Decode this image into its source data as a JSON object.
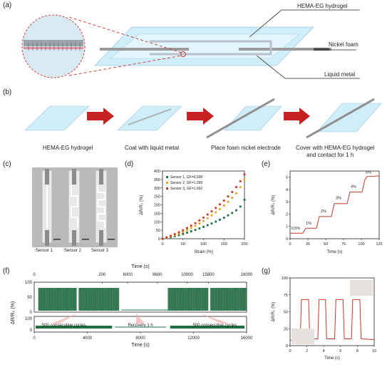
{
  "panels": {
    "a": "(a)",
    "b": "(b)",
    "c": "(c)",
    "d": "(d)",
    "e": "(e)",
    "f": "(f)",
    "g": "(g)"
  },
  "a": {
    "hydrogel": "HEMA-EG hydrogel",
    "nickel": "Nickel foam",
    "metal": "Liquid metal"
  },
  "b": {
    "steps": [
      "HEMA-EG hydrogel",
      "Coat with liquid metal",
      "Place foam nickel electrode",
      "Cover with HEMA-EG hydrogel",
      "and contact for 1 h"
    ]
  },
  "c": {
    "sensors": [
      "Sensor 1",
      "Sensor 2",
      "Sensor 3"
    ]
  },
  "colors": {
    "green": "#1f6e43",
    "orange": "#e6a51d",
    "red": "#c23a2e",
    "dark": "#2f4b36"
  },
  "chart_data": [
    {
      "type": "scatter",
      "xlabel": "Strain (%)",
      "ylabel": "ΔR/R₀ (%)",
      "xlim": [
        0,
        200
      ],
      "ylim": [
        0,
        400
      ],
      "xticks": [
        "0",
        "50",
        "100",
        "150",
        "200"
      ],
      "yticks": [
        "0",
        "50",
        "100",
        "150",
        "200",
        "250",
        "300",
        "350",
        "400"
      ],
      "legend": [
        "Sensor 1, GF=0.938",
        "Sensor 2, GF=1.399",
        "Sensor 3, GF=1.692"
      ],
      "x": [
        0,
        10,
        20,
        30,
        40,
        50,
        60,
        70,
        80,
        90,
        100,
        110,
        120,
        130,
        140,
        150,
        160,
        170,
        180,
        190,
        200
      ],
      "series": [
        {
          "name": "Sensor 1, GF=0.938",
          "values": [
            0,
            4,
            9,
            15,
            21,
            28,
            36,
            44,
            52,
            61,
            70,
            80,
            90,
            101,
            112,
            124,
            138,
            152,
            168,
            190,
            230
          ]
        },
        {
          "name": "Sensor 2, GF=1.399",
          "values": [
            0,
            6,
            13,
            21,
            30,
            40,
            51,
            63,
            76,
            90,
            105,
            121,
            138,
            156,
            175,
            196,
            218,
            242,
            268,
            305,
            350
          ]
        },
        {
          "name": "Sensor 3, GF=1.692",
          "values": [
            0,
            8,
            17,
            27,
            38,
            50,
            63,
            77,
            92,
            108,
            125,
            143,
            162,
            182,
            203,
            225,
            250,
            276,
            305,
            340,
            380
          ]
        }
      ]
    },
    {
      "type": "line",
      "xlabel": "Time (s)",
      "ylabel": "ΔR/R₀ (%)",
      "xlim": [
        0,
        125
      ],
      "ylim": [
        0,
        5.5
      ],
      "xticks": [
        "0",
        "25",
        "50",
        "75",
        "100",
        "125"
      ],
      "yticks": [
        "0",
        "1",
        "2",
        "3",
        "4",
        "5"
      ],
      "annotations": [
        "0.5%",
        "1%",
        "2%",
        "3%",
        "4%",
        "5%"
      ],
      "steps": [
        [
          0,
          0.45
        ],
        [
          18,
          0.45
        ],
        [
          22,
          0.85
        ],
        [
          37,
          0.85
        ],
        [
          41,
          1.8
        ],
        [
          58,
          1.8
        ],
        [
          62,
          2.85
        ],
        [
          80,
          2.85
        ],
        [
          84,
          3.8
        ],
        [
          101,
          3.8
        ],
        [
          105,
          4.8
        ],
        [
          108,
          5.05
        ],
        [
          125,
          5.1
        ]
      ]
    },
    {
      "type": "line",
      "xlabel": "Time (s)",
      "ylabel": "ΔR/R₀ (%)",
      "top_xticks": [
        "0",
        "200",
        "6000",
        "8600",
        "10000",
        "15800",
        "16000"
      ],
      "bottom_xticks": [
        "0",
        "4000",
        "8000",
        "12000",
        "16000"
      ],
      "top_yticks": [
        "100",
        "50",
        "0"
      ],
      "bottom_yticks": [
        "100",
        "0"
      ],
      "annotations": [
        "500 consecutive cycles",
        "Recovery 1 h",
        "500 consecutive cycles"
      ]
    },
    {
      "type": "line",
      "xlabel": "Time (s)",
      "ylabel": "ΔR/R₀ (%)",
      "xlim": [
        0,
        10
      ],
      "ylim": [
        0,
        100
      ],
      "xticks": [
        "0",
        "2",
        "4",
        "6",
        "8",
        "10"
      ],
      "yticks": [
        "0",
        "25",
        "50",
        "75",
        "100"
      ]
    }
  ]
}
